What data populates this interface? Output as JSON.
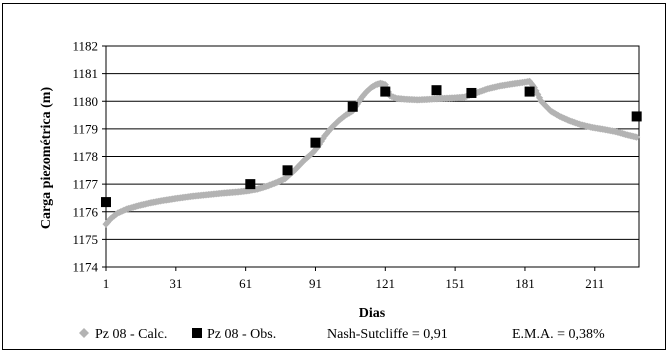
{
  "chart_data": {
    "type": "scatter",
    "title": "",
    "xlabel": "Dias",
    "ylabel": "Carga piezométrica (m)",
    "xlim": [
      1,
      230
    ],
    "ylim": [
      1174,
      1182
    ],
    "xticks": [
      1,
      31,
      61,
      91,
      121,
      151,
      181,
      211
    ],
    "yticks": [
      1174,
      1175,
      1176,
      1177,
      1178,
      1179,
      1180,
      1181,
      1182
    ],
    "grid": "horizontal",
    "legend_position": "bottom",
    "series": [
      {
        "name": "Pz 08 - Calc.",
        "marker": "diamond",
        "color": "#b3b3b3",
        "x": [
          1,
          3,
          6,
          10,
          15,
          20,
          25,
          31,
          38,
          45,
          52,
          58,
          62,
          66,
          70,
          74,
          78,
          82,
          86,
          90,
          92,
          95,
          98,
          101,
          104,
          107,
          109,
          111,
          113,
          115,
          117,
          119,
          121,
          123,
          126,
          130,
          135,
          140,
          145,
          150,
          155,
          160,
          165,
          170,
          175,
          180,
          183,
          185,
          188,
          192,
          196,
          200,
          205,
          210,
          215,
          220,
          225,
          229
        ],
        "y": [
          1175.55,
          1175.75,
          1175.95,
          1176.1,
          1176.22,
          1176.32,
          1176.4,
          1176.48,
          1176.56,
          1176.62,
          1176.68,
          1176.72,
          1176.76,
          1176.82,
          1176.92,
          1177.05,
          1177.2,
          1177.5,
          1177.85,
          1178.15,
          1178.35,
          1178.75,
          1179.05,
          1179.3,
          1179.5,
          1179.65,
          1179.9,
          1180.15,
          1180.35,
          1180.5,
          1180.6,
          1180.65,
          1180.6,
          1180.2,
          1180.1,
          1180.07,
          1180.05,
          1180.07,
          1180.1,
          1180.12,
          1180.15,
          1180.3,
          1180.45,
          1180.55,
          1180.62,
          1180.68,
          1180.72,
          1180.5,
          1180.0,
          1179.65,
          1179.45,
          1179.3,
          1179.15,
          1179.05,
          1178.98,
          1178.9,
          1178.78,
          1178.7
        ]
      },
      {
        "name": "Pz 08 - Obs.",
        "marker": "square",
        "color": "#000000",
        "x": [
          1,
          63,
          79,
          91,
          107,
          121,
          143,
          158,
          183,
          229
        ],
        "y": [
          1176.35,
          1177.0,
          1177.5,
          1178.5,
          1179.8,
          1180.35,
          1180.4,
          1180.3,
          1180.35,
          1179.45
        ]
      }
    ],
    "annotations": [
      "Nash-Sutcliffe = 0,91",
      "E.M.A. = 0,38%"
    ]
  }
}
